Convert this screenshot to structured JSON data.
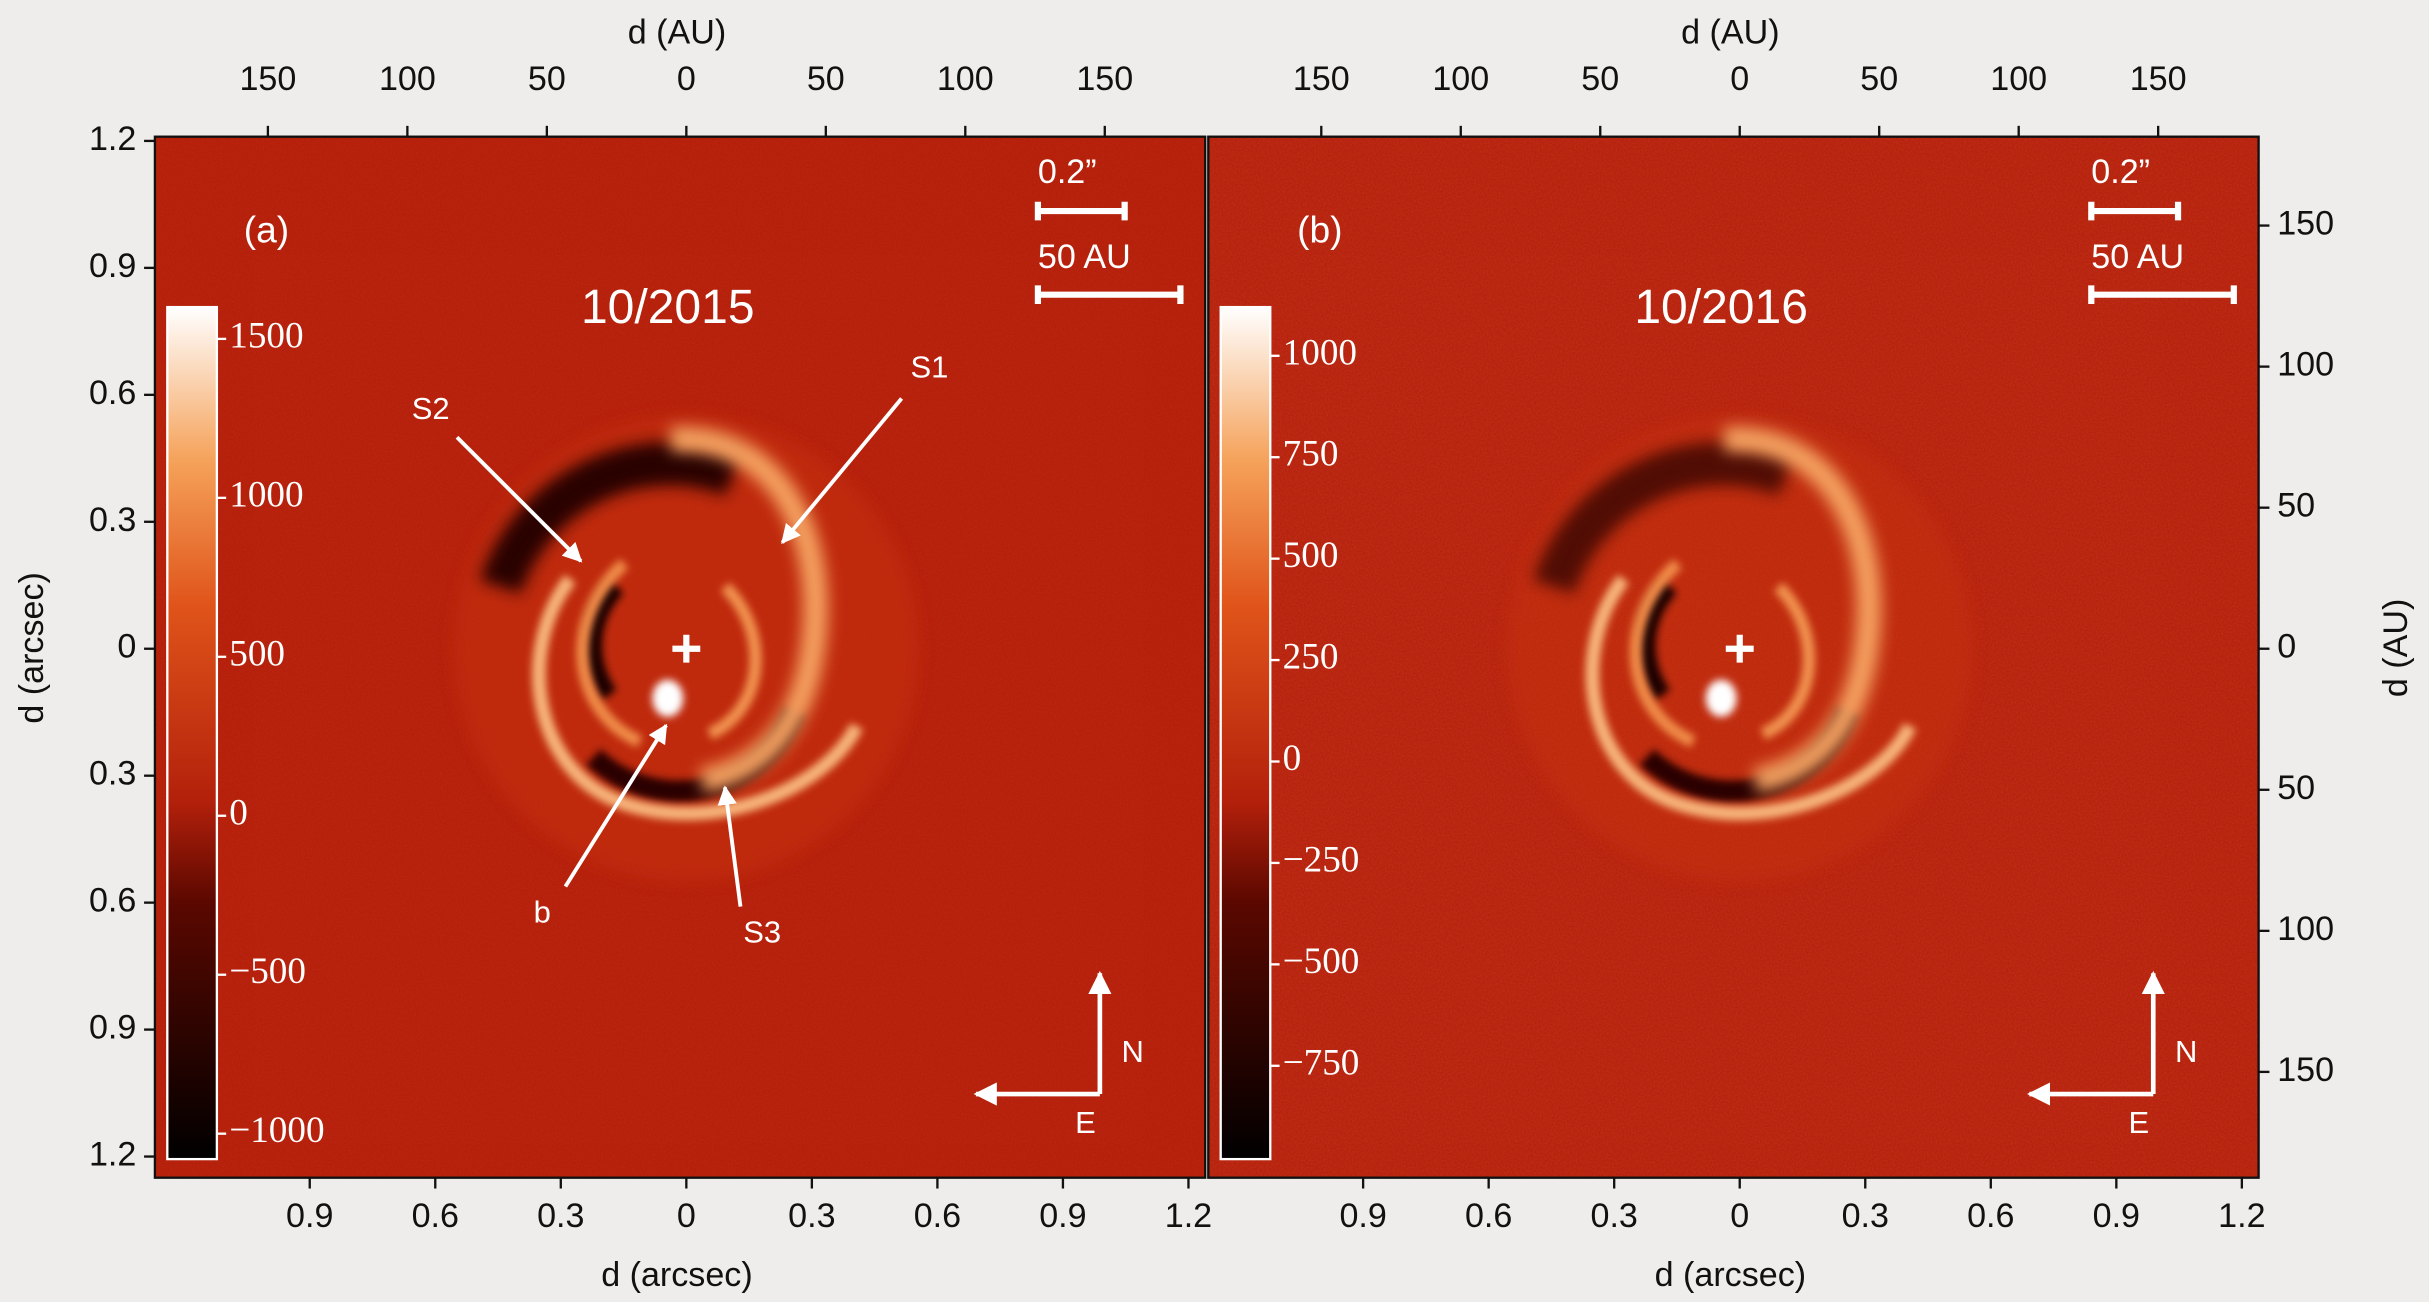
{
  "chart_data": [
    {
      "type": "image",
      "panel_label": "(a)",
      "date": "10/2015",
      "top_label": "d (AU)",
      "x_label": "d (arcsec)",
      "y_label": "d (arcsec)",
      "xlim": [
        -1.27,
        1.24
      ],
      "xticks": [
        {
          "value": -0.9,
          "label": "0.9"
        },
        {
          "value": -0.6,
          "label": "0.6"
        },
        {
          "value": -0.3,
          "label": "0.3"
        },
        0,
        0.3,
        0.6,
        0.9,
        1.2
      ],
      "top_xlim": [
        -190.5,
        186
      ],
      "top_xticks": [
        {
          "value": -150,
          "label": "150"
        },
        {
          "value": -100,
          "label": "100"
        },
        {
          "value": -50,
          "label": "50"
        },
        0,
        50,
        100,
        150
      ],
      "ylim": [
        -1.25,
        1.21
      ],
      "yticks": [
        1.2,
        0.9,
        0.6,
        0.3,
        0,
        {
          "value": -0.3,
          "label": "0.3"
        },
        {
          "value": -0.6,
          "label": "0.6"
        },
        {
          "value": -0.9,
          "label": "0.9"
        },
        {
          "value": -1.2,
          "label": "1.2"
        }
      ],
      "colorbar": {
        "lim": [
          -1080,
          1600
        ],
        "ticks": [
          1500,
          1000,
          500,
          0,
          {
            "value": -500,
            "label": "−500"
          },
          {
            "value": -1000,
            "label": "−1000"
          }
        ]
      },
      "scale_bars": [
        "0.2”",
        "50 AU"
      ],
      "annotations": [
        "S1",
        "S2",
        "S3",
        "b"
      ],
      "compass": [
        "N",
        "E"
      ]
    },
    {
      "type": "image",
      "panel_label": "(b)",
      "date": "10/2016",
      "top_label": "d (AU)",
      "x_label": "d (arcsec)",
      "y2_label": "d (AU)",
      "xlim": [
        -1.27,
        1.24
      ],
      "xticks": [
        {
          "value": -0.9,
          "label": "0.9"
        },
        {
          "value": -0.6,
          "label": "0.6"
        },
        {
          "value": -0.3,
          "label": "0.3"
        },
        0,
        0.3,
        0.6,
        0.9,
        1.2
      ],
      "top_xlim": [
        -190.5,
        186
      ],
      "top_xticks": [
        {
          "value": -150,
          "label": "150"
        },
        {
          "value": -100,
          "label": "100"
        },
        {
          "value": -50,
          "label": "50"
        },
        0,
        50,
        100,
        150
      ],
      "ylim": [
        -1.25,
        1.21
      ],
      "y2lim": [
        -187.5,
        181.5
      ],
      "y2ticks": [
        150,
        100,
        50,
        0,
        {
          "value": -50,
          "label": "50"
        },
        {
          "value": -100,
          "label": "100"
        },
        {
          "value": -150,
          "label": "150"
        }
      ],
      "colorbar": {
        "lim": [
          -980,
          1120
        ],
        "ticks": [
          1000,
          750,
          500,
          250,
          0,
          {
            "value": -250,
            "label": "−250"
          },
          {
            "value": -500,
            "label": "−500"
          },
          {
            "value": -750,
            "label": "−750"
          }
        ]
      },
      "scale_bars": [
        "0.2”",
        "50 AU"
      ],
      "compass": [
        "N",
        "E"
      ]
    }
  ]
}
